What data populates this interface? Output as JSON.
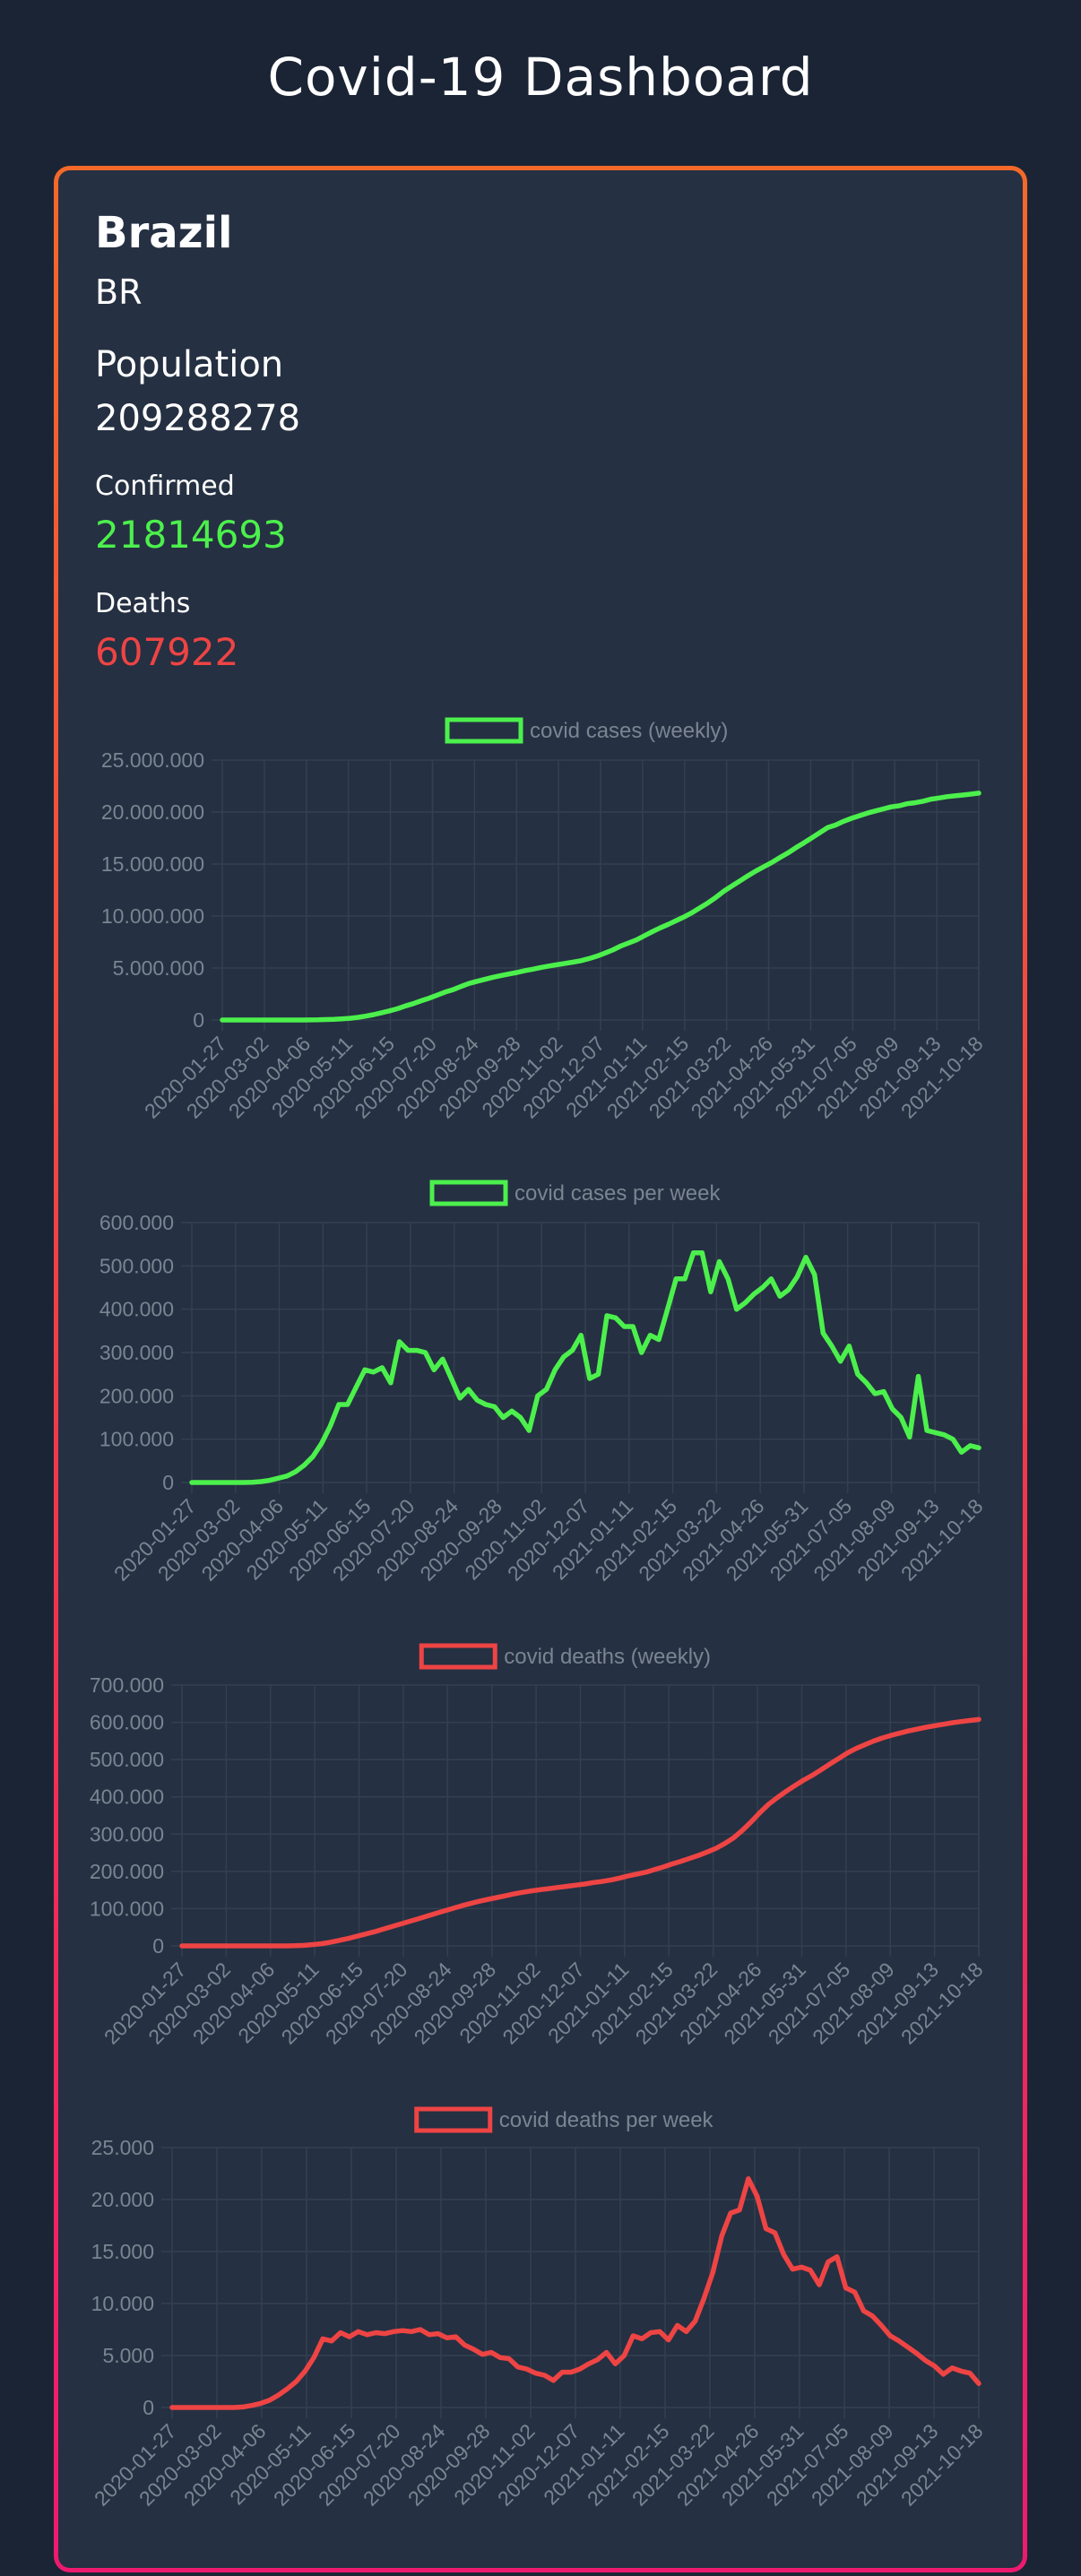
{
  "page": {
    "title": "Covid-19 Dashboard"
  },
  "country": {
    "name": "Brazil",
    "code": "BR",
    "population_label": "Population",
    "population": "209288278",
    "confirmed_label": "Confirmed",
    "confirmed": "21814693",
    "deaths_label": "Deaths",
    "deaths": "607922"
  },
  "colors": {
    "cases": "#4cf04c",
    "deaths": "#ee4444",
    "grid": "#34404f",
    "text": "#7b8491"
  },
  "x_ticks": [
    "2020-01-27",
    "2020-03-02",
    "2020-04-06",
    "2020-05-11",
    "2020-06-15",
    "2020-07-20",
    "2020-08-24",
    "2020-09-28",
    "2020-11-02",
    "2020-12-07",
    "2021-01-11",
    "2021-02-15",
    "2021-03-22",
    "2021-04-26",
    "2021-05-31",
    "2021-07-05",
    "2021-08-09",
    "2021-09-13",
    "2021-10-18"
  ],
  "chart_data": [
    {
      "type": "line",
      "legend": "covid cases (weekly)",
      "legend_position": "top",
      "grid": true,
      "ylim": [
        0,
        25000000
      ],
      "y_ticks": [
        "25.000.000",
        "20.000.000",
        "15.000.000",
        "10.000.000",
        "5.000.000",
        "0"
      ],
      "values": [
        0,
        0,
        0,
        0,
        0,
        0,
        0,
        0,
        100,
        1000,
        4000,
        10000,
        20000,
        40000,
        70000,
        110000,
        160000,
        250000,
        370000,
        520000,
        700000,
        880000,
        1090000,
        1350000,
        1580000,
        1850000,
        2100000,
        2400000,
        2690000,
        2920000,
        3230000,
        3520000,
        3720000,
        3910000,
        4110000,
        4280000,
        4420000,
        4570000,
        4750000,
        4890000,
        5050000,
        5190000,
        5310000,
        5440000,
        5560000,
        5700000,
        5900000,
        6130000,
        6410000,
        6720000,
        7100000,
        7400000,
        7700000,
        8100000,
        8490000,
        8860000,
        9200000,
        9560000,
        9920000,
        10330000,
        10800000,
        11270000,
        11800000,
        12400000,
        12900000,
        13380000,
        13870000,
        14330000,
        14740000,
        15150000,
        15610000,
        16050000,
        16560000,
        17020000,
        17510000,
        18000000,
        18500000,
        18750000,
        19100000,
        19400000,
        19650000,
        19900000,
        20100000,
        20300000,
        20500000,
        20600000,
        20800000,
        20900000,
        21040000,
        21240000,
        21350000,
        21480000,
        21560000,
        21640000,
        21720000,
        21814693
      ]
    },
    {
      "type": "line",
      "legend": "covid cases per week",
      "legend_position": "top",
      "grid": true,
      "ylim": [
        0,
        600000
      ],
      "y_ticks": [
        "600.000",
        "500.000",
        "400.000",
        "300.000",
        "200.000",
        "100.000",
        "0"
      ],
      "values": [
        0,
        0,
        0,
        0,
        0,
        0,
        0,
        500,
        2000,
        5000,
        10000,
        15000,
        25000,
        40000,
        60000,
        90000,
        130000,
        180000,
        180000,
        220000,
        260000,
        255000,
        265000,
        230000,
        325000,
        305000,
        305000,
        300000,
        260000,
        285000,
        240000,
        195000,
        215000,
        190000,
        180000,
        175000,
        150000,
        165000,
        150000,
        120000,
        200000,
        215000,
        260000,
        290000,
        305000,
        340000,
        240000,
        250000,
        385000,
        380000,
        360000,
        360000,
        300000,
        340000,
        330000,
        400000,
        470000,
        470000,
        530000,
        530000,
        440000,
        510000,
        470000,
        400000,
        415000,
        435000,
        450000,
        470000,
        430000,
        445000,
        475000,
        520000,
        480000,
        345000,
        315000,
        280000,
        315000,
        250000,
        230000,
        205000,
        210000,
        170000,
        150000,
        105000,
        245000,
        120000,
        115000,
        110000,
        100000,
        70000,
        85000,
        80000
      ]
    },
    {
      "type": "line",
      "legend": "covid deaths (weekly)",
      "legend_position": "top",
      "grid": true,
      "ylim": [
        0,
        700000
      ],
      "y_ticks": [
        "700.000",
        "600.000",
        "500.000",
        "400.000",
        "300.000",
        "200.000",
        "100.000",
        "0"
      ],
      "values": [
        0,
        0,
        0,
        0,
        0,
        0,
        0,
        0,
        0,
        0,
        0,
        0,
        100,
        500,
        1500,
        3500,
        6000,
        10000,
        15000,
        20000,
        26000,
        32000,
        38000,
        45000,
        52000,
        59000,
        66000,
        73000,
        80000,
        87000,
        94000,
        101000,
        108000,
        114000,
        120000,
        125000,
        130000,
        135000,
        140000,
        144000,
        148000,
        151000,
        154000,
        157000,
        160000,
        163000,
        166000,
        170000,
        173000,
        177000,
        182000,
        188000,
        193000,
        198000,
        205000,
        212000,
        220000,
        227000,
        235000,
        243000,
        252000,
        262000,
        275000,
        290000,
        310000,
        333000,
        358000,
        380000,
        398000,
        415000,
        430000,
        445000,
        458000,
        473000,
        488000,
        503000,
        518000,
        530000,
        540000,
        550000,
        558000,
        565000,
        571000,
        577000,
        582000,
        587000,
        591000,
        595000,
        599000,
        602000,
        605000,
        607922
      ]
    },
    {
      "type": "line",
      "legend": "covid deaths per week",
      "legend_position": "top",
      "grid": true,
      "ylim": [
        0,
        25000
      ],
      "y_ticks": [
        "25.000",
        "20.000",
        "15.000",
        "10.000",
        "5.000",
        "0"
      ],
      "values": [
        0,
        0,
        0,
        0,
        0,
        0,
        0,
        0,
        50,
        200,
        400,
        700,
        1200,
        1800,
        2500,
        3500,
        4800,
        6600,
        6400,
        7200,
        6800,
        7300,
        7000,
        7200,
        7100,
        7300,
        7400,
        7300,
        7500,
        7000,
        7100,
        6700,
        6800,
        6000,
        5600,
        5100,
        5300,
        4800,
        4700,
        3900,
        3700,
        3300,
        3100,
        2600,
        3400,
        3400,
        3700,
        4200,
        4600,
        5300,
        4200,
        5000,
        6900,
        6600,
        7200,
        7300,
        6500,
        7900,
        7300,
        8300,
        10500,
        13000,
        16500,
        18700,
        19000,
        22000,
        20300,
        17200,
        16800,
        14700,
        13300,
        13500,
        13200,
        11800,
        14000,
        14500,
        11500,
        11100,
        9300,
        8800,
        7900,
        6900,
        6400,
        5800,
        5200,
        4500,
        4000,
        3200,
        3800,
        3500,
        3300,
        2300
      ]
    }
  ]
}
